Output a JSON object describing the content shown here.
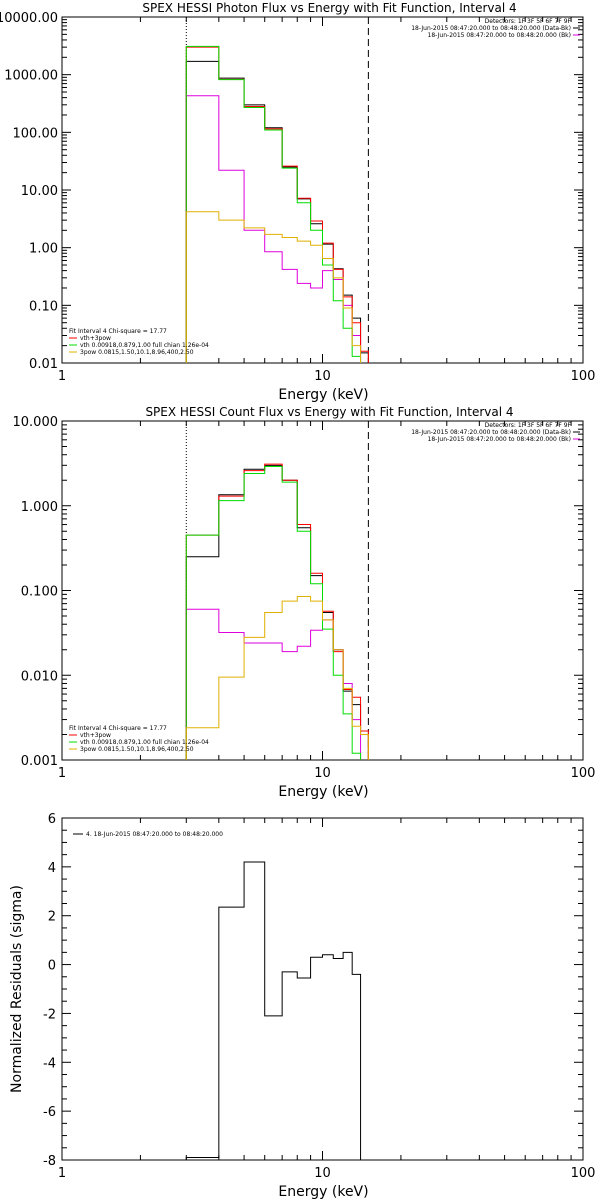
{
  "chart_data": [
    {
      "type": "line",
      "title": "SPEX HESSI Photon Flux vs Energy with Fit Function, Interval 4",
      "xlabel": "Energy (keV)",
      "ylabel": "",
      "xscale": "log",
      "yscale": "log",
      "xlim": [
        1,
        100
      ],
      "ylim": [
        0.01,
        10000
      ],
      "x_tick_labels": [
        "1",
        "10",
        "100"
      ],
      "y_tick_labels": [
        "0.01",
        "0.10",
        "1.00",
        "10.00",
        "100.00",
        "1000.00",
        "10000.00"
      ],
      "vlines": [
        {
          "x": 3,
          "style": "dotted"
        },
        {
          "x": 15,
          "style": "dashed"
        }
      ],
      "header": [
        "Detectors: 1F 3F 5F 6F 7F 9F",
        "18-Jun-2015 08:47:20.000 to 08:48:20.000 (Data-Bk)",
        "18-Jun-2015 08:47:20.000 to 08:48:20.000 (Bk)"
      ],
      "bin_edges": [
        3.0,
        4.0,
        5.0,
        6.0,
        7.0,
        8.0,
        9.0,
        10.0,
        11.0,
        12.0,
        13.0,
        14.0,
        15.0,
        16.0
      ],
      "series": [
        {
          "name": "18-Jun-2015 08:47:20.000 to 08:48:20.000 (Data-Bk)",
          "color": "#000000",
          "values": [
            1700,
            870,
            300,
            120,
            25,
            7,
            2.6,
            1.15,
            0.43,
            0.15,
            0.06,
            0.015
          ]
        },
        {
          "name": "18-Jun-2015 08:47:20.000 to 08:48:20.000 (Bk)",
          "color": "#dd00dd",
          "values": [
            430,
            22,
            2.0,
            0.85,
            0.42,
            0.24,
            0.2,
            0.4,
            0.28,
            0.1,
            0.03
          ]
        },
        {
          "name": "vth+3pow",
          "color": "#ff0000",
          "values": [
            3000,
            830,
            280,
            115,
            26,
            7.2,
            2.9,
            1.2,
            0.42,
            0.14,
            0.05,
            0.016
          ]
        },
        {
          "name": "vth 0.00918,0.879,1.00  full chian 1.26e-04",
          "color": "#00dd00",
          "values": [
            3100,
            820,
            270,
            110,
            24,
            6,
            2.0,
            0.5,
            0.12,
            0.04,
            0.013
          ]
        },
        {
          "name": "3pow 0.0815,1.50,10.1,8.96,400,2.50",
          "color": "#e0b000",
          "values": [
            4.2,
            3.0,
            2.2,
            1.7,
            1.5,
            1.3,
            1.1,
            0.65,
            0.3,
            0.09,
            0.02
          ]
        }
      ],
      "legend": {
        "title": "Fit Interval 4   Chi-square = 17.77",
        "items": [
          {
            "label": "vth+3pow",
            "color": "#ff0000"
          },
          {
            "label": "vth 0.00918,0.879,1.00  full chian 1.26e-04",
            "color": "#00dd00"
          },
          {
            "label": "3pow 0.0815,1.50,10.1,8.96,400,2.50",
            "color": "#e0b000"
          }
        ]
      }
    },
    {
      "type": "line",
      "title": "SPEX HESSI Count Flux vs Energy with Fit Function, Interval 4",
      "xlabel": "Energy (keV)",
      "ylabel": "",
      "xscale": "log",
      "yscale": "log",
      "xlim": [
        1,
        100
      ],
      "ylim": [
        0.001,
        10
      ],
      "x_tick_labels": [
        "1",
        "10",
        "100"
      ],
      "y_tick_labels": [
        "0.001",
        "0.010",
        "0.100",
        "1.000",
        "10.000"
      ],
      "vlines": [
        {
          "x": 3,
          "style": "dotted"
        },
        {
          "x": 15,
          "style": "dashed"
        }
      ],
      "header": [
        "Detectors: 1F 3F 5F 6F 7F 9F",
        "18-Jun-2015 08:47:20.000 to 08:48:20.000 (Data-Bk)",
        "18-Jun-2015 08:47:20.000 to 08:48:20.000 (Bk)"
      ],
      "bin_edges": [
        3.0,
        4.0,
        5.0,
        6.0,
        7.0,
        8.0,
        9.0,
        10.0,
        11.0,
        12.0,
        13.0,
        14.0,
        15.0,
        16.0
      ],
      "series": [
        {
          "name": "18-Jun-2015 08:47:20.000 to 08:48:20.000 (Data-Bk)",
          "color": "#000000",
          "values": [
            0.25,
            1.35,
            2.7,
            3.0,
            2.0,
            0.55,
            0.15,
            0.055,
            0.02,
            0.0065,
            0.0045,
            0.002
          ]
        },
        {
          "name": "18-Jun-2015 08:47:20.000 to 08:48:20.000 (Bk)",
          "color": "#dd00dd",
          "values": [
            0.06,
            0.032,
            0.024,
            0.024,
            0.019,
            0.022,
            0.034,
            0.045,
            0.02,
            0.008,
            0.003
          ]
        },
        {
          "name": "vth+3pow",
          "color": "#ff0000",
          "values": [
            0.45,
            1.3,
            2.6,
            3.1,
            2.0,
            0.6,
            0.16,
            0.057,
            0.019,
            0.0068,
            0.0055,
            0.0022
          ]
        },
        {
          "name": "vth 0.00918,0.879,1.00  full chian 1.26e-04",
          "color": "#00dd00",
          "values": [
            0.45,
            1.15,
            2.4,
            2.9,
            1.9,
            0.5,
            0.12,
            0.035,
            0.01,
            0.0035,
            0.0012
          ]
        },
        {
          "name": "3pow 0.0815,1.50,10.1,8.96,400,2.50",
          "color": "#e0b000",
          "values": [
            0.0024,
            0.0095,
            0.028,
            0.055,
            0.075,
            0.085,
            0.075,
            0.045,
            0.02,
            0.007,
            0.0025,
            0.002
          ]
        }
      ],
      "legend": {
        "title": "Fit Interval 4   Chi-square = 17.77",
        "items": [
          {
            "label": "vth+3pow",
            "color": "#ff0000"
          },
          {
            "label": "vth 0.00918,0.879,1.00  full chian 1.26e-04",
            "color": "#00dd00"
          },
          {
            "label": "3pow 0.0815,1.50,10.1,8.96,400,2.50",
            "color": "#e0b000"
          }
        ]
      }
    },
    {
      "type": "line",
      "title": "",
      "xlabel": "Energy (keV)",
      "ylabel": "Normalized Residuals (sigma)",
      "xscale": "log",
      "yscale": "linear",
      "xlim": [
        1,
        100
      ],
      "ylim": [
        -8,
        6
      ],
      "x_tick_labels": [
        "1",
        "10",
        "100"
      ],
      "y_tick_labels": [
        "-8",
        "-6",
        "-4",
        "-2",
        "0",
        "2",
        "4",
        "6"
      ],
      "bin_edges": [
        3.0,
        4.0,
        5.0,
        6.0,
        7.0,
        8.0,
        9.0,
        10.0,
        11.0,
        12.0,
        13.0,
        14.0,
        15.0
      ],
      "series": [
        {
          "name": "4. 18-Jun-2015 08:47:20.000 to 08:48:20.000",
          "color": "#000000",
          "values": [
            -7.9,
            2.35,
            4.2,
            -2.1,
            -0.3,
            -0.55,
            0.3,
            0.4,
            0.25,
            0.5,
            -0.4
          ]
        }
      ],
      "legend": {
        "items": [
          {
            "label": "4. 18-Jun-2015 08:47:20.000 to 08:48:20.000",
            "color": "#000000"
          }
        ]
      }
    }
  ]
}
